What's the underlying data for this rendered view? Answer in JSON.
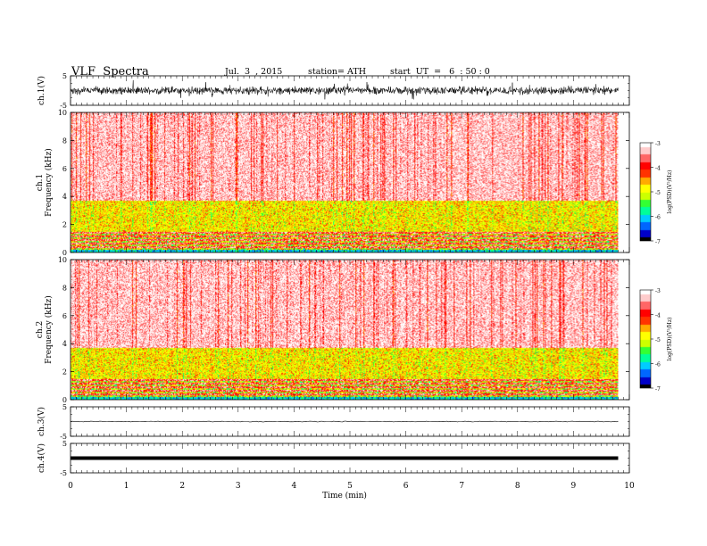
{
  "header": {
    "title": "VLF  Spectra",
    "date": "Jul.  3  , 2015",
    "station": "station= ATH",
    "start": "start  UT  =   6  : 50 : 0"
  },
  "chart_data": [
    {
      "type": "line",
      "id": "ch1",
      "ylabel": "ch.1(V)",
      "ylim": [
        -5,
        5
      ],
      "yticks": [
        "5",
        "-5"
      ],
      "xlim": [
        0,
        10
      ],
      "x_end": 9.8,
      "description_amplitude_v": 1.3
    },
    {
      "type": "heatmap",
      "id": "spec1",
      "ylabel": [
        "ch.1",
        "Frequency  (kHz)"
      ],
      "ylim": [
        0,
        10
      ],
      "yticks": [
        "0",
        "2",
        "4",
        "6",
        "8",
        "10"
      ],
      "xlim": [
        0,
        10
      ],
      "x_end": 9.8,
      "colorbar": {
        "label": "log(PSD)(V²/Hz)",
        "range": [
          -7,
          -3
        ],
        "ticks": [
          "-3",
          "-4",
          "-5",
          "-6",
          "-7"
        ]
      }
    },
    {
      "type": "heatmap",
      "id": "spec2",
      "ylabel": [
        "ch.2",
        "Frequency  (kHz)"
      ],
      "ylim": [
        0,
        10
      ],
      "yticks": [
        "0",
        "2",
        "4",
        "6",
        "8",
        "10"
      ],
      "xlim": [
        0,
        10
      ],
      "x_end": 9.8,
      "colorbar": {
        "label": "log(PSD)(V²/Hz)",
        "range": [
          -7,
          -3
        ],
        "ticks": [
          "-3",
          "-4",
          "-5",
          "-6",
          "-7"
        ]
      }
    },
    {
      "type": "line",
      "id": "ch3",
      "ylabel": "ch.3(V)",
      "ylim": [
        -5,
        5
      ],
      "yticks": [
        "5",
        "-5"
      ],
      "xlim": [
        0,
        10
      ],
      "x_end": 9.8,
      "level_v": 0
    },
    {
      "type": "line",
      "id": "ch4",
      "ylabel": "ch.4(V)",
      "ylim": [
        -5,
        5
      ],
      "yticks": [
        "5",
        "-5"
      ],
      "xlim": [
        0,
        10
      ],
      "x_end": 9.8,
      "level_v": 0
    }
  ],
  "x_axis": {
    "label": "Time  (min)",
    "ticks": [
      "0",
      "1",
      "2",
      "3",
      "4",
      "5",
      "6",
      "7",
      "8",
      "9",
      "10"
    ]
  },
  "colors": {
    "scale": [
      "#000000",
      "#0000c8",
      "#0066ff",
      "#00ccff",
      "#00ff99",
      "#33ff33",
      "#ccff00",
      "#ffff00",
      "#ffaa00",
      "#ff3300",
      "#ff0000",
      "#ff6666",
      "#ffcccc",
      "#ffffff"
    ]
  }
}
